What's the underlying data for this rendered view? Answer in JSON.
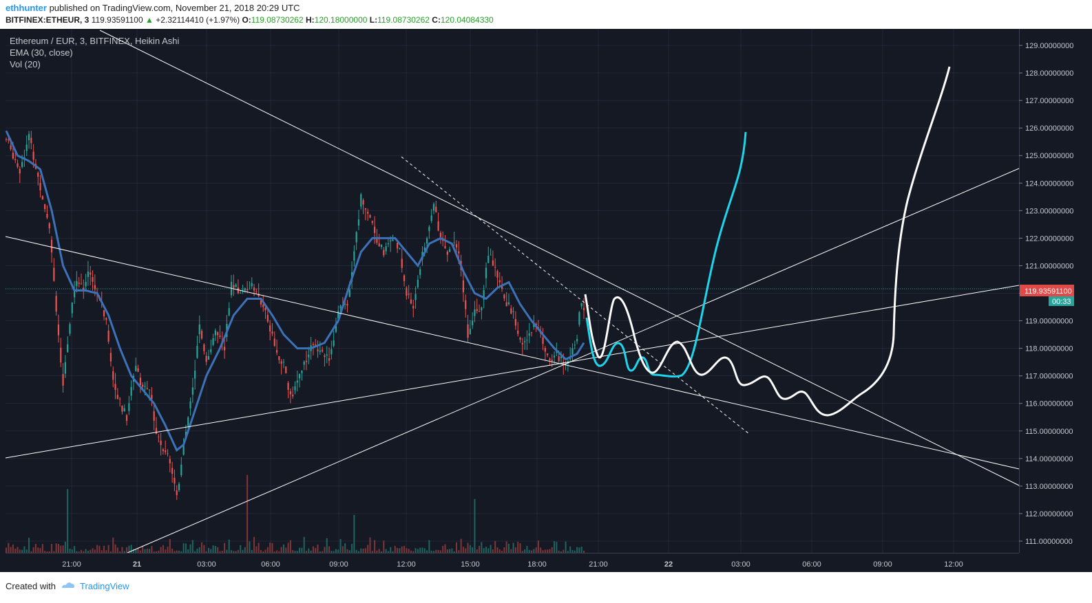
{
  "header": {
    "author": "ethhunter",
    "published": "published on TradingView.com, November 21, 2018 20:29 UTC",
    "symbol": "BITFINEX:ETHEUR, 3",
    "price": "119.93591100",
    "change_arrow": "▲",
    "change": "+2.32114410 (+1.97%)",
    "o_label": "O:",
    "o_value": "119.08730262",
    "h_label": "H:",
    "h_value": "120.18000000",
    "l_label": "L:",
    "l_value": "119.08730262",
    "c_label": "C:",
    "c_value": "120.04084330"
  },
  "legend": {
    "title": "Ethereum / EUR, 3, BITFINEX, Heikin Ashi",
    "ema": "EMA (30, close)",
    "vol": "Vol (20)"
  },
  "price_label": {
    "value": "119.93591100",
    "countdown": "00:33"
  },
  "footer": {
    "created": "Created with",
    "brand": "TradingView"
  },
  "colors": {
    "background": "#151924",
    "up": "#26a69a",
    "down": "#ef5350",
    "ema": "#3d72b8",
    "grid": "#232838",
    "projection_cyan": "#1ed6ec",
    "projection_white": "#ffffff",
    "price_label": "#e04a48",
    "countdown": "#26a69a"
  },
  "chart_data": {
    "type": "candlestick",
    "style": "Heikin Ashi",
    "ylim": [
      110.5,
      129.5
    ],
    "y_ticks": [
      "111.00000000",
      "112.00000000",
      "113.00000000",
      "114.00000000",
      "115.00000000",
      "116.00000000",
      "117.00000000",
      "118.00000000",
      "119.00000000",
      "120.00000000",
      "121.00000000",
      "122.00000000",
      "123.00000000",
      "124.00000000",
      "125.00000000",
      "126.00000000",
      "127.00000000",
      "128.00000000",
      "129.00000000"
    ],
    "x_ticks": [
      "21:00",
      "21",
      "03:00",
      "06:00",
      "09:00",
      "12:00",
      "15:00",
      "18:00",
      "21:00",
      "22",
      "03:00",
      "06:00",
      "09:00",
      "12:00"
    ],
    "close_path": [
      [
        0,
        125.6
      ],
      [
        6,
        124.5
      ],
      [
        10,
        125.7
      ],
      [
        14,
        124.2
      ],
      [
        19,
        122.5
      ],
      [
        22,
        119.5
      ],
      [
        25,
        116.5
      ],
      [
        28,
        119.0
      ],
      [
        31,
        120.5
      ],
      [
        34,
        120.3
      ],
      [
        37,
        120.8
      ],
      [
        40,
        120.0
      ],
      [
        44,
        119.0
      ],
      [
        47,
        117.0
      ],
      [
        50,
        116.0
      ],
      [
        53,
        115.5
      ],
      [
        57,
        117.5
      ],
      [
        60,
        116.5
      ],
      [
        63,
        116.5
      ],
      [
        66,
        115.0
      ],
      [
        69,
        114.2
      ],
      [
        72,
        114.0
      ],
      [
        75,
        112.5
      ],
      [
        78,
        114.5
      ],
      [
        82,
        116.5
      ],
      [
        85,
        119.0
      ],
      [
        88,
        117.5
      ],
      [
        92,
        118.5
      ],
      [
        96,
        118.0
      ],
      [
        99,
        120.3
      ],
      [
        103,
        120.0
      ],
      [
        107,
        120.3
      ],
      [
        111,
        120.0
      ],
      [
        115,
        119.0
      ],
      [
        119,
        117.8
      ],
      [
        122,
        117.5
      ],
      [
        125,
        116.2
      ],
      [
        128,
        116.8
      ],
      [
        131,
        117.5
      ],
      [
        135,
        118.2
      ],
      [
        138,
        118.0
      ],
      [
        142,
        117.5
      ],
      [
        146,
        119.3
      ],
      [
        150,
        119.7
      ],
      [
        153,
        121.5
      ],
      [
        156,
        123.5
      ],
      [
        160,
        122.8
      ],
      [
        163,
        122.0
      ],
      [
        166,
        121.5
      ],
      [
        170,
        122.0
      ],
      [
        173,
        121.5
      ],
      [
        176,
        120.0
      ],
      [
        179,
        119.5
      ],
      [
        182,
        121.0
      ],
      [
        185,
        122.0
      ],
      [
        188,
        123.3
      ],
      [
        191,
        122.0
      ],
      [
        194,
        121.5
      ],
      [
        197,
        122.0
      ],
      [
        200,
        121.0
      ],
      [
        203,
        118.5
      ],
      [
        206,
        119.5
      ],
      [
        209,
        119.5
      ],
      [
        212,
        121.5
      ],
      [
        215,
        120.8
      ],
      [
        218,
        120.0
      ],
      [
        221,
        119.5
      ],
      [
        224,
        119.0
      ],
      [
        227,
        118.0
      ],
      [
        230,
        118.5
      ],
      [
        233,
        119.0
      ],
      [
        236,
        118.3
      ],
      [
        239,
        117.5
      ],
      [
        242,
        117.8
      ],
      [
        245,
        117.5
      ],
      [
        248,
        117.8
      ],
      [
        251,
        118.5
      ],
      [
        253,
        119.8
      ],
      [
        254,
        119.5
      ]
    ],
    "ema_path": [
      [
        0,
        125.9
      ],
      [
        5,
        125.0
      ],
      [
        10,
        124.8
      ],
      [
        15,
        124.5
      ],
      [
        20,
        123.0
      ],
      [
        25,
        121.0
      ],
      [
        30,
        120.1
      ],
      [
        35,
        120.1
      ],
      [
        40,
        120.0
      ],
      [
        45,
        119.2
      ],
      [
        50,
        118.0
      ],
      [
        55,
        117.0
      ],
      [
        60,
        116.5
      ],
      [
        65,
        116.0
      ],
      [
        70,
        115.2
      ],
      [
        75,
        114.3
      ],
      [
        78,
        114.5
      ],
      [
        82,
        115.5
      ],
      [
        88,
        117.0
      ],
      [
        94,
        118.0
      ],
      [
        100,
        119.2
      ],
      [
        106,
        119.8
      ],
      [
        112,
        119.8
      ],
      [
        117,
        119.2
      ],
      [
        122,
        118.5
      ],
      [
        128,
        118.0
      ],
      [
        134,
        118.0
      ],
      [
        140,
        118.2
      ],
      [
        146,
        119.0
      ],
      [
        151,
        120.3
      ],
      [
        156,
        121.5
      ],
      [
        161,
        122.0
      ],
      [
        166,
        122.0
      ],
      [
        171,
        122.0
      ],
      [
        176,
        121.5
      ],
      [
        181,
        121.0
      ],
      [
        186,
        121.8
      ],
      [
        191,
        122.0
      ],
      [
        196,
        121.8
      ],
      [
        201,
        120.8
      ],
      [
        206,
        120.0
      ],
      [
        211,
        119.8
      ],
      [
        216,
        120.2
      ],
      [
        221,
        120.4
      ],
      [
        226,
        119.6
      ],
      [
        231,
        119.0
      ],
      [
        236,
        118.5
      ],
      [
        241,
        118.0
      ],
      [
        246,
        117.6
      ],
      [
        251,
        117.8
      ],
      [
        254,
        118.2
      ]
    ],
    "vol_max": 1.0
  }
}
